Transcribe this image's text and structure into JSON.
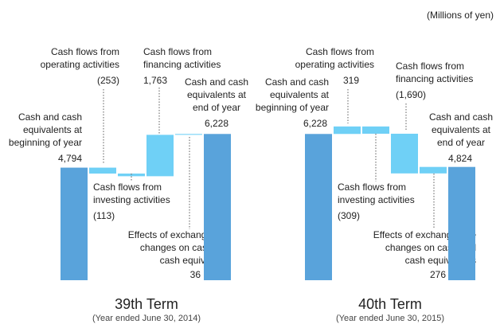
{
  "unit_note": "(Millions of yen)",
  "chart_data": [
    {
      "type": "waterfall",
      "title": "39th Term",
      "subtitle": "(Year ended June 30, 2014)",
      "categories": [
        "Cash and cash\nequivalents at\nbeginning of year",
        "Cash flows from\noperating activities",
        "Cash flows from\ninvesting activities",
        "Cash flows from\nfinancing activities",
        "Effects of exchange rate\nchanges on cash and\ncash equivalents",
        "Cash and cash\nequivalents at\nend of year"
      ],
      "measure": [
        "absolute",
        "relative",
        "relative",
        "relative",
        "relative",
        "total"
      ],
      "values": [
        4794,
        -253,
        -113,
        1763,
        36,
        6228
      ],
      "value_labels": [
        "4,794",
        "(253)",
        "(113)",
        "1,763",
        "36",
        "6,228"
      ],
      "total_color": "#59a3db",
      "change_color": "#6fd0f6"
    },
    {
      "type": "waterfall",
      "title": "40th Term",
      "subtitle": "(Year ended June 30, 2015)",
      "categories": [
        "Cash and cash\nequivalents at\nbeginning of year",
        "Cash flows from\noperating activities",
        "Cash flows from\ninvesting activities",
        "Cash flows from\nfinancing activities",
        "Effects of exchange rate\nchanges on cash and\ncash equivalents",
        "Cash and cash\nequivalents at\nend of year"
      ],
      "measure": [
        "absolute",
        "relative",
        "relative",
        "relative",
        "relative",
        "total"
      ],
      "values": [
        6228,
        319,
        -309,
        -1690,
        276,
        4824
      ],
      "value_labels": [
        "6,228",
        "319",
        "(309)",
        "(1,690)",
        "276",
        "4,824"
      ],
      "total_color": "#59a3db",
      "change_color": "#6fd0f6"
    }
  ]
}
